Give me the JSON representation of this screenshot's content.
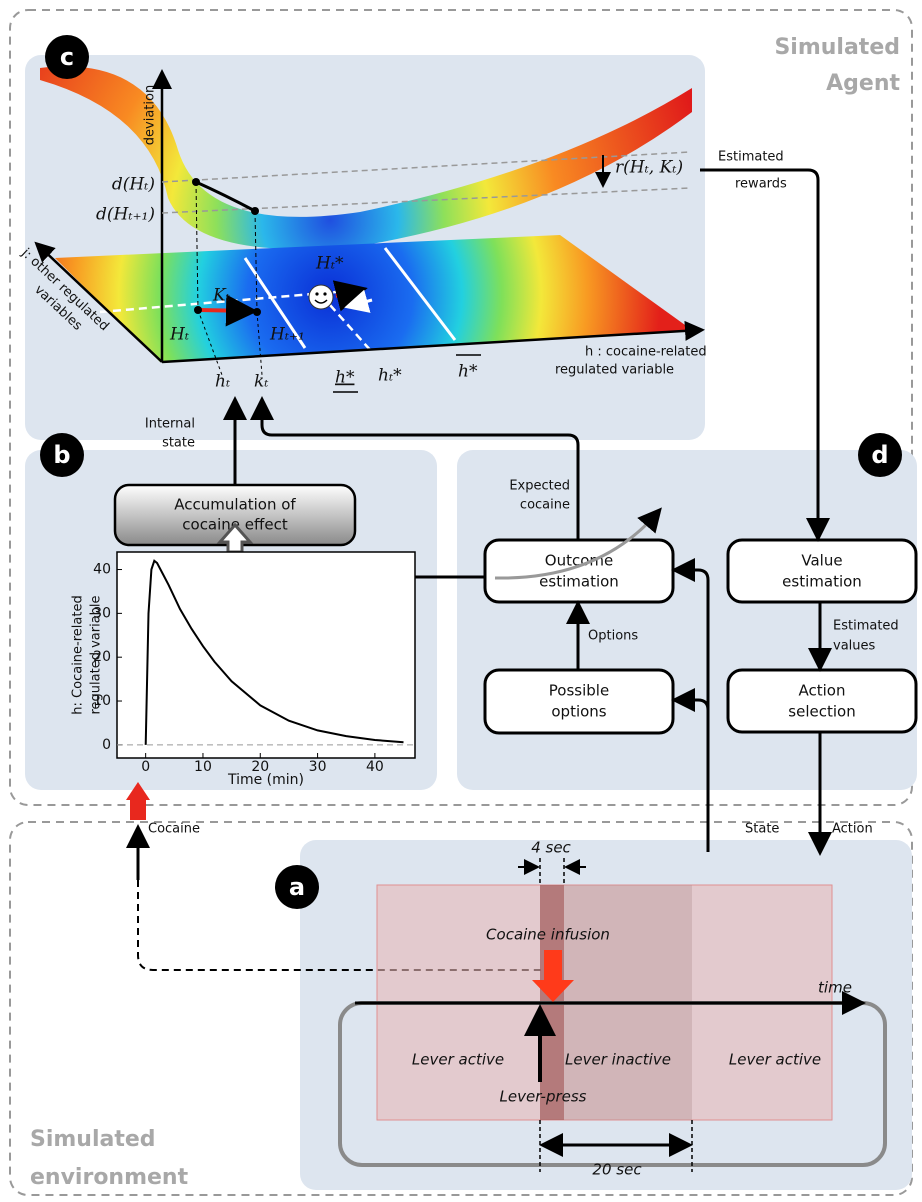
{
  "side_labels": {
    "agent": [
      "Simulated",
      "Agent"
    ],
    "environment": [
      "Simulated",
      "environment"
    ]
  },
  "panel_letters": {
    "a": "a",
    "b": "b",
    "c": "c",
    "d": "d"
  },
  "panel_c": {
    "z_axis": "deviation",
    "d_ht": "d(Hₜ)",
    "d_ht1": "d(Hₜ₊₁)",
    "reward": "r(Hₜ, Kₜ)",
    "j_axis": [
      "j: other regulated",
      "variables"
    ],
    "h_axis": [
      "h : cocaine-related",
      "regulated variable"
    ],
    "point_ht": "Hₜ",
    "point_kt": "Kₜ",
    "point_ht1": "Hₜ₊₁",
    "point_hstar": "Hₜ*",
    "tick_ht": "hₜ",
    "tick_kt": "kₜ",
    "tick_hlow": "h*",
    "tick_htstar": "hₜ*",
    "tick_hhigh": "h*"
  },
  "flow_labels": {
    "estimated_rewards": [
      "Estimated",
      "rewards"
    ],
    "internal_state": [
      "Internal",
      "state"
    ],
    "expected_cocaine": [
      "Expected",
      "cocaine"
    ],
    "options": "Options",
    "estimated_values": [
      "Estimated",
      "values"
    ],
    "cocaine": "Cocaine",
    "state": "State",
    "action": "Action"
  },
  "boxes": {
    "accumulation": [
      "Accumulation of",
      "cocaine effect"
    ],
    "outcome": [
      "Outcome",
      "estimation"
    ],
    "possible": [
      "Possible",
      "options"
    ],
    "value": [
      "Value",
      "estimation"
    ],
    "action": [
      "Action",
      "selection"
    ]
  },
  "plot": {
    "y_label": [
      "h: Cocaine-related",
      "regulated variable"
    ],
    "x_label": "Time (min)",
    "xlim": [
      -5,
      47
    ],
    "ylim": [
      -3,
      44
    ],
    "xticks": [
      0,
      10,
      20,
      30,
      40
    ],
    "yticks": [
      0,
      10,
      20,
      30,
      40
    ],
    "x": [
      0,
      0.5,
      1,
      1.5,
      2,
      3,
      4,
      6,
      8,
      10,
      12,
      15,
      20,
      25,
      30,
      35,
      40,
      45
    ],
    "y": [
      0,
      30,
      40,
      42,
      41.5,
      39,
      36.5,
      31,
      26.5,
      22.5,
      19,
      14.5,
      9,
      5.5,
      3.3,
      2,
      1.1,
      0.6
    ]
  },
  "panel_a": {
    "four_sec": "4 sec",
    "infusion": "Cocaine infusion",
    "time": "time",
    "lever_active_1": "Lever active",
    "lever_inactive": "Lever inactive",
    "lever_active_2": "Lever active",
    "lever_press": "Lever-press",
    "twenty_sec": "20 sec"
  }
}
